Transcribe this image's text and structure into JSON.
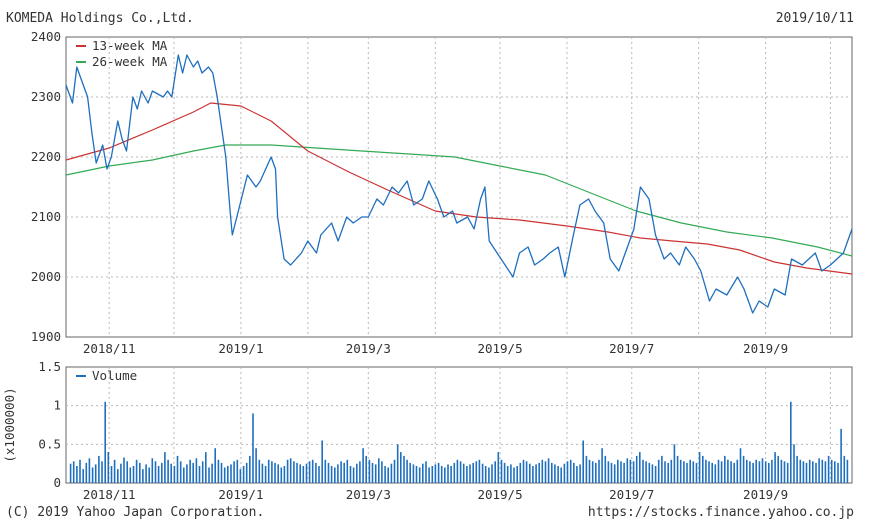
{
  "header": {
    "company": "KOMEDA Holdings Co.,Ltd.",
    "date": "2019/10/11"
  },
  "footer": {
    "copyright": "(C) 2019 Yahoo Japan Corporation.",
    "url": "https://stocks.finance.yahoo.co.jp"
  },
  "colors": {
    "price": "#1f6fbf",
    "ma13": "#cc3333",
    "ma26": "#33aa55",
    "volume": "#1f6fbf",
    "grid": "#b8b8b8"
  },
  "chart_data": [
    {
      "type": "line",
      "grid": true,
      "legend_placement": "top-left",
      "xlim": [
        "2018-10-12",
        "2019-10-11"
      ],
      "ylim": [
        1900,
        2400
      ],
      "ytick_labels": [
        "1900",
        "2000",
        "2100",
        "2200",
        "2300",
        "2400"
      ],
      "xtick_labels": [
        "2018/11",
        "2019/1",
        "2019/3",
        "2019/5",
        "2019/7",
        "2019/9"
      ],
      "xtick_dates": [
        "2018-11-01",
        "2019-01-01",
        "2019-03-01",
        "2019-05-01",
        "2019-07-01",
        "2019-09-01"
      ],
      "series": [
        {
          "name": "Price",
          "color": "#1f6fbf",
          "points": [
            [
              "2018-10-12",
              2320
            ],
            [
              "2018-10-15",
              2290
            ],
            [
              "2018-10-17",
              2350
            ],
            [
              "2018-10-19",
              2330
            ],
            [
              "2018-10-22",
              2300
            ],
            [
              "2018-10-24",
              2240
            ],
            [
              "2018-10-26",
              2190
            ],
            [
              "2018-10-29",
              2220
            ],
            [
              "2018-10-31",
              2180
            ],
            [
              "2018-11-02",
              2200
            ],
            [
              "2018-11-05",
              2260
            ],
            [
              "2018-11-07",
              2230
            ],
            [
              "2018-11-09",
              2210
            ],
            [
              "2018-11-12",
              2300
            ],
            [
              "2018-11-14",
              2280
            ],
            [
              "2018-11-16",
              2310
            ],
            [
              "2018-11-19",
              2290
            ],
            [
              "2018-11-21",
              2310
            ],
            [
              "2018-11-26",
              2300
            ],
            [
              "2018-11-28",
              2310
            ],
            [
              "2018-11-30",
              2300
            ],
            [
              "2018-12-03",
              2370
            ],
            [
              "2018-12-05",
              2340
            ],
            [
              "2018-12-07",
              2370
            ],
            [
              "2018-12-10",
              2350
            ],
            [
              "2018-12-12",
              2360
            ],
            [
              "2018-12-14",
              2340
            ],
            [
              "2018-12-17",
              2350
            ],
            [
              "2018-12-19",
              2340
            ],
            [
              "2018-12-21",
              2300
            ],
            [
              "2018-12-25",
              2200
            ],
            [
              "2018-12-27",
              2110
            ],
            [
              "2018-12-28",
              2070
            ],
            [
              "2019-01-04",
              2170
            ],
            [
              "2019-01-08",
              2150
            ],
            [
              "2019-01-10",
              2160
            ],
            [
              "2019-01-15",
              2200
            ],
            [
              "2019-01-17",
              2180
            ],
            [
              "2019-01-18",
              2100
            ],
            [
              "2019-01-21",
              2030
            ],
            [
              "2019-01-24",
              2020
            ],
            [
              "2019-01-29",
              2040
            ],
            [
              "2019-02-01",
              2060
            ],
            [
              "2019-02-05",
              2040
            ],
            [
              "2019-02-07",
              2070
            ],
            [
              "2019-02-12",
              2090
            ],
            [
              "2019-02-15",
              2060
            ],
            [
              "2019-02-19",
              2100
            ],
            [
              "2019-02-22",
              2090
            ],
            [
              "2019-02-26",
              2100
            ],
            [
              "2019-03-01",
              2100
            ],
            [
              "2019-03-05",
              2130
            ],
            [
              "2019-03-08",
              2120
            ],
            [
              "2019-03-12",
              2150
            ],
            [
              "2019-03-15",
              2140
            ],
            [
              "2019-03-19",
              2160
            ],
            [
              "2019-03-22",
              2120
            ],
            [
              "2019-03-26",
              2130
            ],
            [
              "2019-03-29",
              2160
            ],
            [
              "2019-04-02",
              2130
            ],
            [
              "2019-04-05",
              2100
            ],
            [
              "2019-04-09",
              2110
            ],
            [
              "2019-04-11",
              2090
            ],
            [
              "2019-04-16",
              2100
            ],
            [
              "2019-04-19",
              2080
            ],
            [
              "2019-04-22",
              2130
            ],
            [
              "2019-04-24",
              2150
            ],
            [
              "2019-04-26",
              2060
            ],
            [
              "2019-05-07",
              2000
            ],
            [
              "2019-05-10",
              2040
            ],
            [
              "2019-05-14",
              2050
            ],
            [
              "2019-05-17",
              2020
            ],
            [
              "2019-05-21",
              2030
            ],
            [
              "2019-05-24",
              2040
            ],
            [
              "2019-05-28",
              2050
            ],
            [
              "2019-05-31",
              2000
            ],
            [
              "2019-06-04",
              2070
            ],
            [
              "2019-06-07",
              2120
            ],
            [
              "2019-06-11",
              2130
            ],
            [
              "2019-06-14",
              2110
            ],
            [
              "2019-06-18",
              2090
            ],
            [
              "2019-06-21",
              2030
            ],
            [
              "2019-06-25",
              2010
            ],
            [
              "2019-06-28",
              2040
            ],
            [
              "2019-07-02",
              2080
            ],
            [
              "2019-07-05",
              2150
            ],
            [
              "2019-07-09",
              2130
            ],
            [
              "2019-07-12",
              2070
            ],
            [
              "2019-07-16",
              2030
            ],
            [
              "2019-07-19",
              2040
            ],
            [
              "2019-07-23",
              2020
            ],
            [
              "2019-07-26",
              2050
            ],
            [
              "2019-07-30",
              2030
            ],
            [
              "2019-08-02",
              2010
            ],
            [
              "2019-08-06",
              1960
            ],
            [
              "2019-08-09",
              1980
            ],
            [
              "2019-08-14",
              1970
            ],
            [
              "2019-08-19",
              2000
            ],
            [
              "2019-08-22",
              1980
            ],
            [
              "2019-08-26",
              1940
            ],
            [
              "2019-08-29",
              1960
            ],
            [
              "2019-09-02",
              1950
            ],
            [
              "2019-09-05",
              1980
            ],
            [
              "2019-09-10",
              1970
            ],
            [
              "2019-09-13",
              2030
            ],
            [
              "2019-09-18",
              2020
            ],
            [
              "2019-09-24",
              2040
            ],
            [
              "2019-09-27",
              2010
            ],
            [
              "2019-10-01",
              2020
            ],
            [
              "2019-10-04",
              2030
            ],
            [
              "2019-10-07",
              2040
            ],
            [
              "2019-10-09",
              2060
            ],
            [
              "2019-10-11",
              2080
            ]
          ]
        },
        {
          "name": "13-week MA",
          "color": "#cc3333",
          "points": [
            [
              "2018-10-12",
              2195
            ],
            [
              "2018-11-01",
              2215
            ],
            [
              "2018-11-21",
              2245
            ],
            [
              "2018-12-10",
              2275
            ],
            [
              "2018-12-18",
              2290
            ],
            [
              "2019-01-01",
              2285
            ],
            [
              "2019-01-15",
              2260
            ],
            [
              "2019-02-01",
              2210
            ],
            [
              "2019-02-20",
              2175
            ],
            [
              "2019-03-10",
              2145
            ],
            [
              "2019-04-01",
              2110
            ],
            [
              "2019-04-20",
              2100
            ],
            [
              "2019-05-10",
              2095
            ],
            [
              "2019-06-01",
              2085
            ],
            [
              "2019-06-20",
              2075
            ],
            [
              "2019-07-05",
              2065
            ],
            [
              "2019-07-20",
              2060
            ],
            [
              "2019-08-05",
              2055
            ],
            [
              "2019-08-20",
              2045
            ],
            [
              "2019-09-05",
              2025
            ],
            [
              "2019-09-20",
              2015
            ],
            [
              "2019-10-11",
              2005
            ]
          ]
        },
        {
          "name": "26-week MA",
          "color": "#33aa55",
          "points": [
            [
              "2018-10-12",
              2170
            ],
            [
              "2018-11-01",
              2185
            ],
            [
              "2018-11-21",
              2195
            ],
            [
              "2018-12-10",
              2210
            ],
            [
              "2018-12-25",
              2220
            ],
            [
              "2019-01-15",
              2220
            ],
            [
              "2019-02-05",
              2215
            ],
            [
              "2019-02-26",
              2210
            ],
            [
              "2019-03-20",
              2205
            ],
            [
              "2019-04-10",
              2200
            ],
            [
              "2019-05-01",
              2185
            ],
            [
              "2019-05-22",
              2170
            ],
            [
              "2019-06-12",
              2140
            ],
            [
              "2019-07-03",
              2110
            ],
            [
              "2019-07-24",
              2090
            ],
            [
              "2019-08-14",
              2075
            ],
            [
              "2019-09-04",
              2065
            ],
            [
              "2019-09-25",
              2050
            ],
            [
              "2019-10-11",
              2035
            ]
          ]
        }
      ]
    },
    {
      "type": "bar",
      "grid": true,
      "legend_placement": "top-left",
      "ylabel": "(x1000000)",
      "ylim": [
        0,
        1.5
      ],
      "ytick_labels": [
        "0",
        "0.5",
        "1",
        "1.5"
      ],
      "xtick_labels": [
        "2018/11",
        "2019/1",
        "2019/3",
        "2019/5",
        "2019/7",
        "2019/9"
      ],
      "xtick_dates": [
        "2018-11-01",
        "2019-01-01",
        "2019-03-01",
        "2019-05-01",
        "2019-07-01",
        "2019-09-01"
      ],
      "series": [
        {
          "name": "Volume",
          "color": "#1f6fbf",
          "start_date": "2018-10-12",
          "end_date": "2019-10-11",
          "values": [
            0.25,
            0.28,
            0.22,
            0.3,
            0.18,
            0.26,
            0.32,
            0.2,
            0.24,
            0.35,
            0.28,
            1.05,
            0.4,
            0.22,
            0.3,
            0.18,
            0.25,
            0.33,
            0.28,
            0.2,
            0.22,
            0.3,
            0.26,
            0.18,
            0.24,
            0.2,
            0.32,
            0.28,
            0.22,
            0.26,
            0.4,
            0.3,
            0.25,
            0.22,
            0.35,
            0.28,
            0.2,
            0.24,
            0.3,
            0.26,
            0.32,
            0.22,
            0.28,
            0.4,
            0.2,
            0.25,
            0.45,
            0.3,
            0.26,
            0.2,
            0.22,
            0.24,
            0.28,
            0.3,
            0.18,
            0.22,
            0.26,
            0.35,
            0.9,
            0.45,
            0.3,
            0.25,
            0.22,
            0.3,
            0.28,
            0.26,
            0.24,
            0.2,
            0.22,
            0.3,
            0.32,
            0.28,
            0.26,
            0.24,
            0.22,
            0.25,
            0.28,
            0.3,
            0.26,
            0.22,
            0.55,
            0.3,
            0.26,
            0.22,
            0.2,
            0.24,
            0.28,
            0.26,
            0.3,
            0.22,
            0.2,
            0.25,
            0.28,
            0.45,
            0.35,
            0.3,
            0.26,
            0.24,
            0.32,
            0.28,
            0.22,
            0.2,
            0.25,
            0.3,
            0.5,
            0.4,
            0.35,
            0.3,
            0.26,
            0.24,
            0.22,
            0.2,
            0.25,
            0.28,
            0.2,
            0.22,
            0.24,
            0.26,
            0.22,
            0.2,
            0.24,
            0.22,
            0.26,
            0.3,
            0.28,
            0.25,
            0.22,
            0.24,
            0.26,
            0.28,
            0.3,
            0.25,
            0.22,
            0.2,
            0.24,
            0.28,
            0.4,
            0.3,
            0.26,
            0.22,
            0.24,
            0.2,
            0.22,
            0.26,
            0.3,
            0.28,
            0.25,
            0.22,
            0.24,
            0.26,
            0.3,
            0.28,
            0.32,
            0.26,
            0.24,
            0.22,
            0.2,
            0.25,
            0.28,
            0.3,
            0.26,
            0.22,
            0.24,
            0.55,
            0.35,
            0.3,
            0.28,
            0.26,
            0.3,
            0.45,
            0.35,
            0.28,
            0.26,
            0.24,
            0.3,
            0.28,
            0.26,
            0.32,
            0.3,
            0.28,
            0.35,
            0.4,
            0.3,
            0.28,
            0.26,
            0.24,
            0.22,
            0.3,
            0.35,
            0.28,
            0.26,
            0.3,
            0.5,
            0.35,
            0.3,
            0.28,
            0.26,
            0.3,
            0.28,
            0.26,
            0.4,
            0.35,
            0.3,
            0.28,
            0.26,
            0.24,
            0.3,
            0.28,
            0.35,
            0.3,
            0.28,
            0.26,
            0.3,
            0.45,
            0.35,
            0.3,
            0.28,
            0.26,
            0.3,
            0.28,
            0.32,
            0.28,
            0.26,
            0.3,
            0.4,
            0.35,
            0.3,
            0.28,
            0.26,
            1.05,
            0.5,
            0.35,
            0.3,
            0.28,
            0.26,
            0.3,
            0.28,
            0.26,
            0.32,
            0.3,
            0.28,
            0.35,
            0.3,
            0.28,
            0.26,
            0.7,
            0.35,
            0.3
          ]
        }
      ]
    }
  ]
}
